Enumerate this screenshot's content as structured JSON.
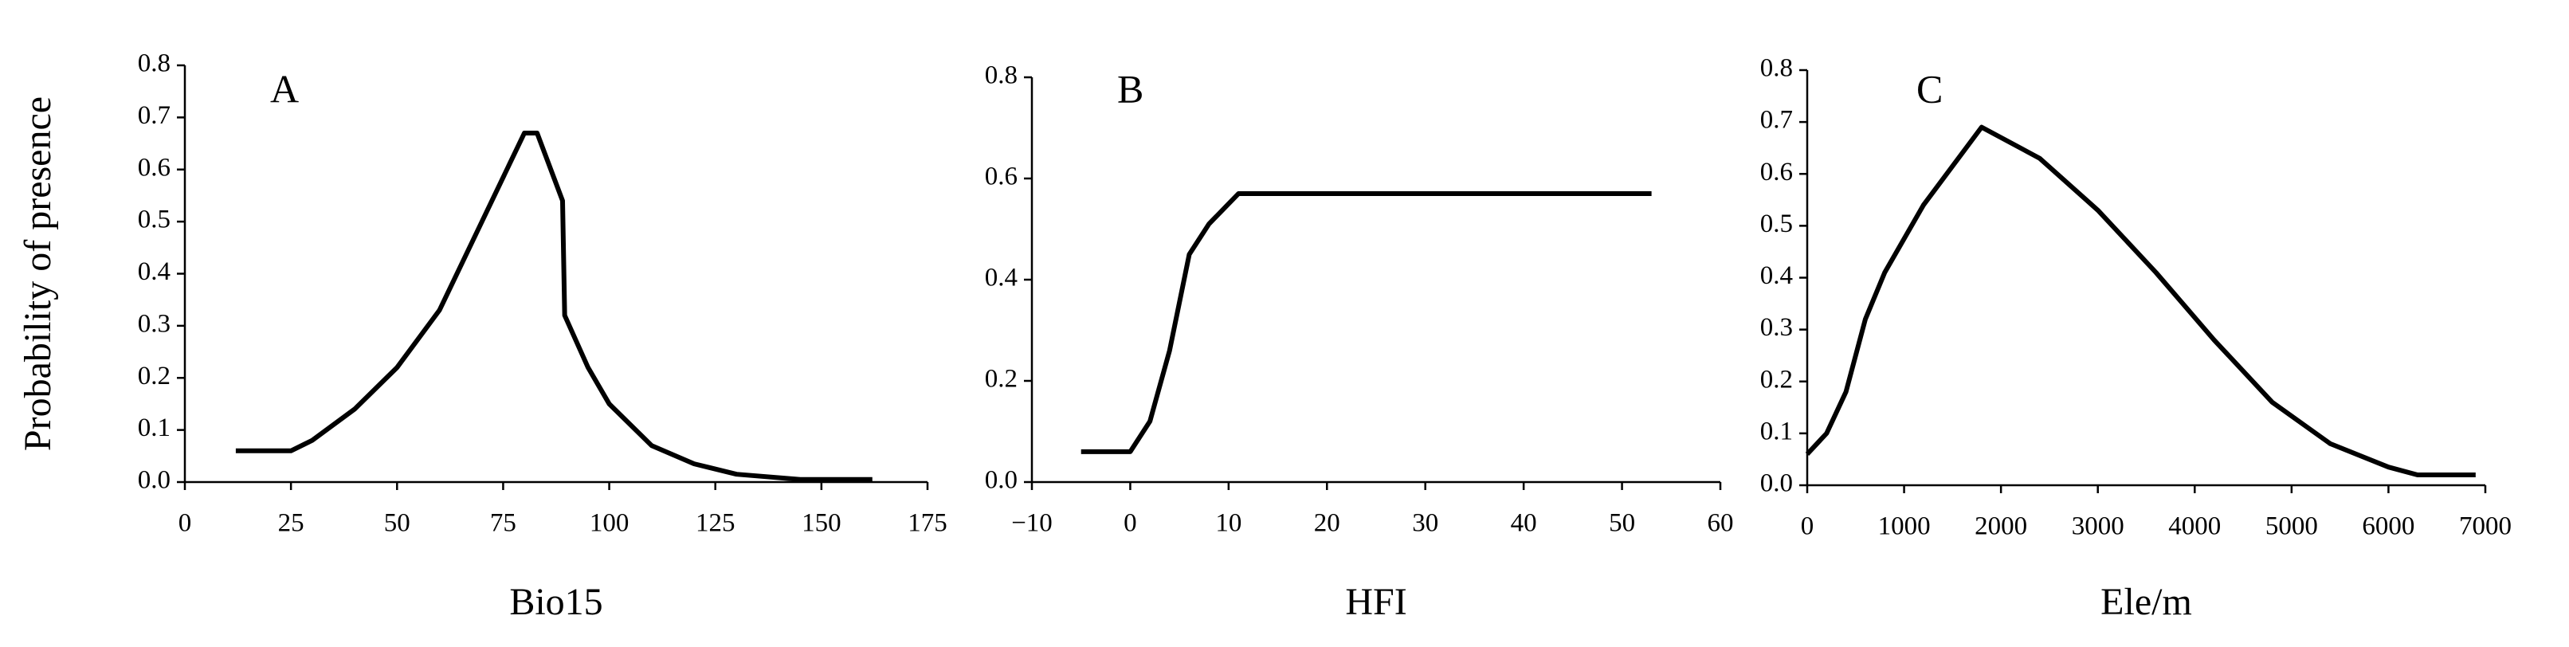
{
  "chart_data": [
    {
      "type": "line",
      "annotation": "A",
      "xlabel": "Bio15",
      "ylabel": "Probability of  presence",
      "xlim": [
        0,
        175
      ],
      "xticks": [
        0,
        25,
        50,
        75,
        100,
        125,
        150,
        175
      ],
      "ylim": [
        0,
        0.8
      ],
      "yticks": [
        {
          "value": 0,
          "label": "0.0"
        },
        0.1,
        0.2,
        0.3,
        0.4,
        0.5,
        0.6,
        0.7,
        0.8
      ],
      "color": "#000000",
      "x": [
        12,
        25,
        30,
        40,
        50,
        60,
        70,
        80,
        83,
        89,
        89.5,
        95,
        100,
        110,
        120,
        130,
        145,
        162
      ],
      "values": [
        0.06,
        0.06,
        0.08,
        0.14,
        0.22,
        0.33,
        0.5,
        0.67,
        0.67,
        0.54,
        0.32,
        0.22,
        0.15,
        0.07,
        0.035,
        0.015,
        0.005,
        0.005
      ]
    },
    {
      "type": "line",
      "annotation": "B",
      "xlabel": "HFI",
      "xlim": [
        -10,
        60
      ],
      "xticks": [
        {
          "value": -10,
          "label": "−10"
        },
        0,
        10,
        20,
        30,
        40,
        50,
        60
      ],
      "ylim": [
        0,
        0.8
      ],
      "yticks": [
        {
          "value": 0,
          "label": "0.0"
        },
        0.2,
        0.4,
        0.6,
        0.8
      ],
      "color": "#000000",
      "x": [
        -5,
        0,
        2,
        4,
        6,
        8,
        11,
        53
      ],
      "values": [
        0.06,
        0.06,
        0.12,
        0.26,
        0.45,
        0.51,
        0.57,
        0.57
      ]
    },
    {
      "type": "line",
      "annotation": "C",
      "xlabel": "Ele/m",
      "xlim": [
        0,
        7000
      ],
      "xticks": [
        0,
        1000,
        2000,
        3000,
        4000,
        5000,
        6000,
        7000
      ],
      "ylim": [
        0,
        0.8
      ],
      "yticks": [
        {
          "value": 0,
          "label": "0.0"
        },
        0.1,
        0.2,
        0.3,
        0.4,
        0.5,
        0.6,
        0.7,
        0.8
      ],
      "color": "#000000",
      "x": [
        0,
        200,
        400,
        600,
        800,
        1200,
        1800,
        2400,
        3000,
        3600,
        4200,
        4800,
        5400,
        6000,
        6300,
        6900
      ],
      "values": [
        0.06,
        0.1,
        0.18,
        0.32,
        0.41,
        0.54,
        0.69,
        0.63,
        0.53,
        0.41,
        0.28,
        0.16,
        0.08,
        0.035,
        0.02,
        0.02
      ]
    }
  ]
}
